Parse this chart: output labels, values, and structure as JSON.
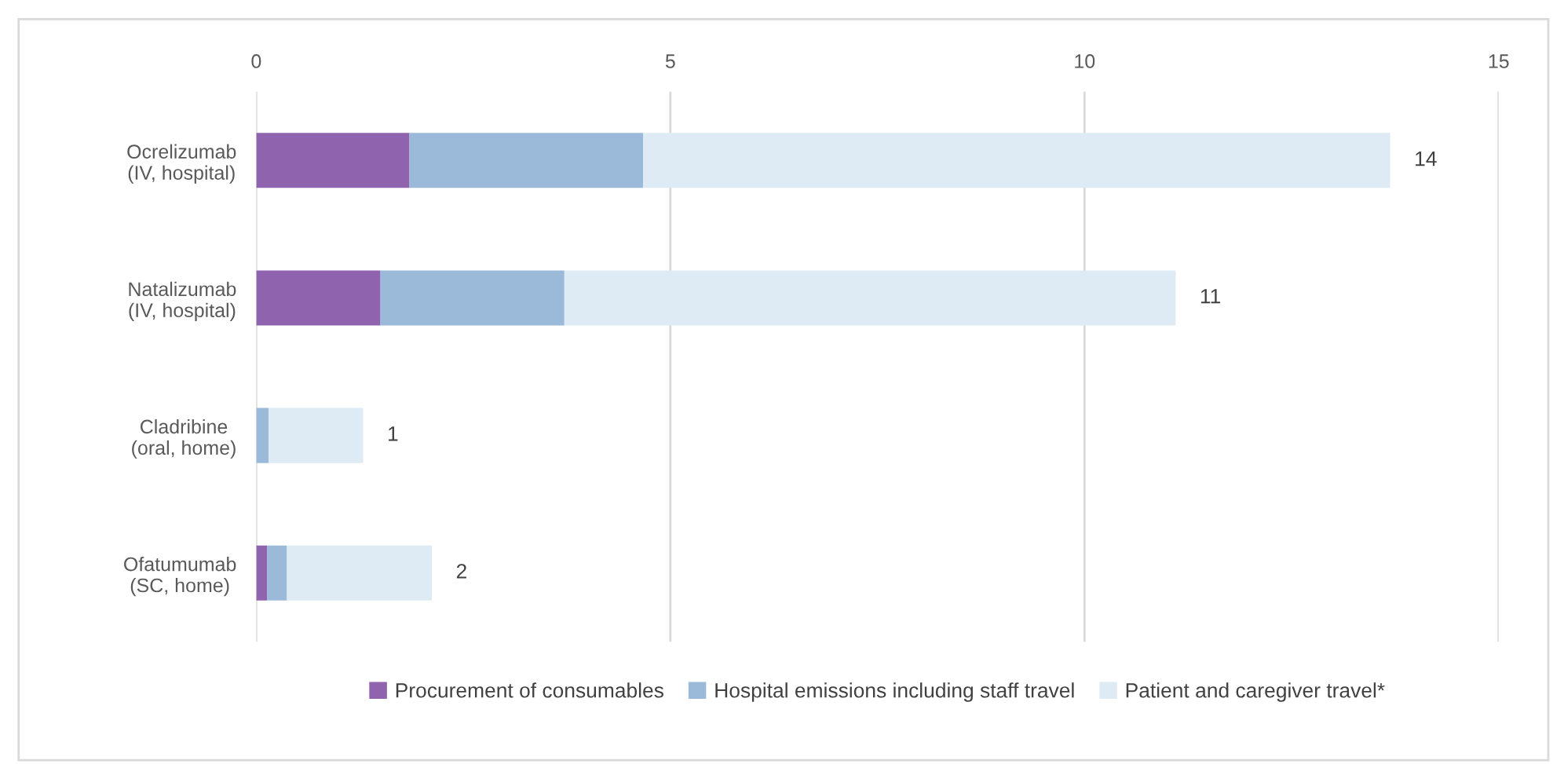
{
  "chart_data": {
    "type": "bar",
    "orientation": "horizontal",
    "stacked": true,
    "categories": [
      "Ocrelizumab\n(IV, hospital)",
      "Natalizumab\n(IV, hospital)",
      "Cladribine\n(oral, home)",
      "Ofatumumab\n(SC, home)"
    ],
    "series": [
      {
        "name": "Procurement of consumables",
        "color": "#8f63ad",
        "values": [
          1.85,
          1.5,
          0,
          0.13
        ]
      },
      {
        "name": "Hospital emissions including staff travel",
        "color": "#9bbad9",
        "values": [
          2.82,
          2.22,
          0.15,
          0.24
        ]
      },
      {
        "name": "Patient and caregiver travel*",
        "color": "#deebf5",
        "values": [
          9.02,
          7.38,
          1.14,
          1.75
        ]
      }
    ],
    "totals": [
      "14",
      "11",
      "1",
      "2"
    ],
    "xlim": [
      0,
      15
    ],
    "xticks": [
      0,
      5,
      10,
      15
    ],
    "grid": "x",
    "legend": "bottom"
  }
}
